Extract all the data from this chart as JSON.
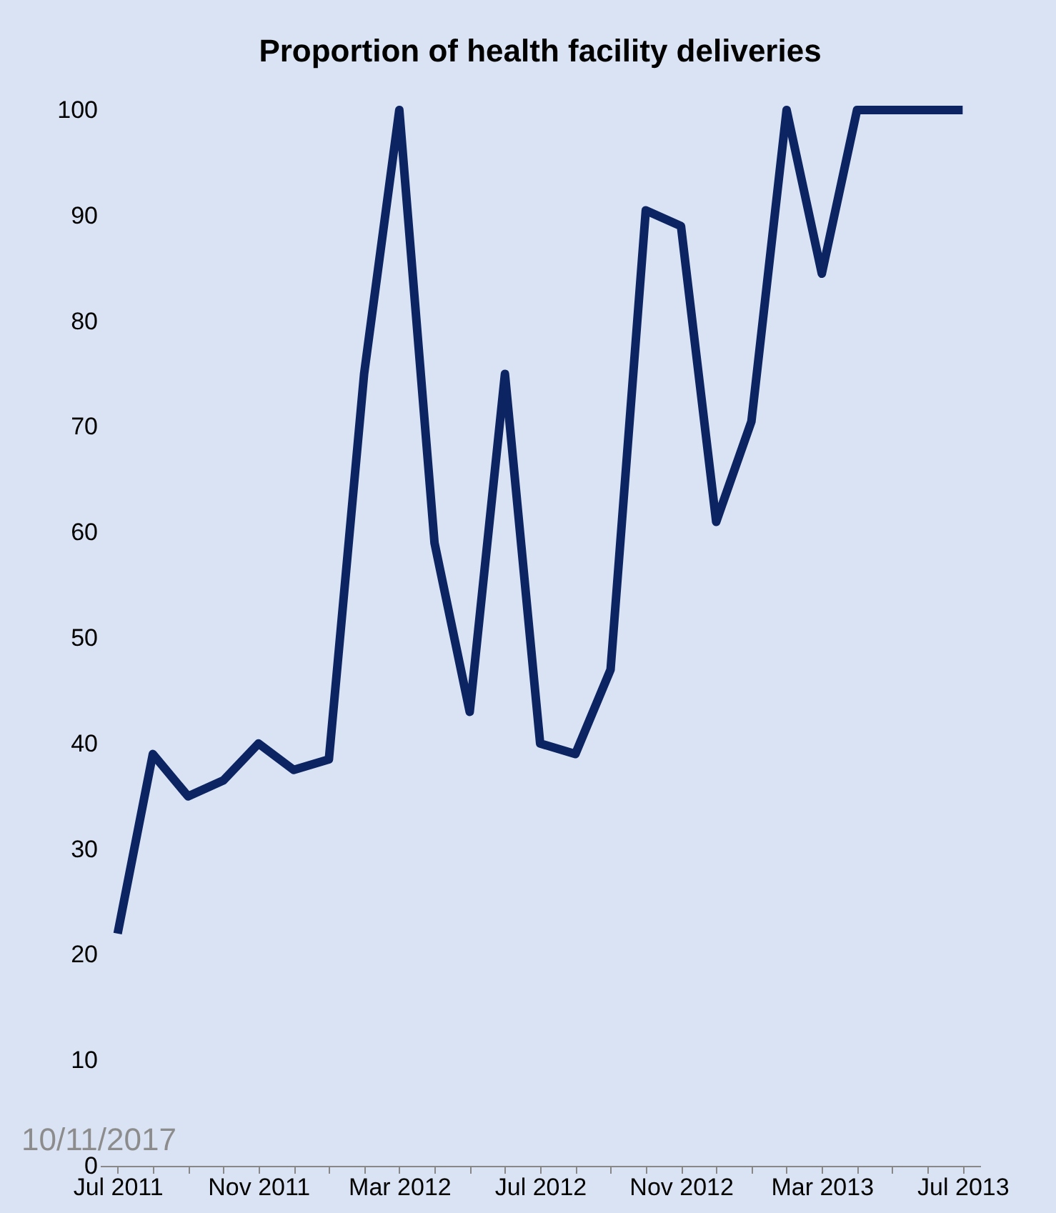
{
  "chart_data": {
    "type": "line",
    "title": "Proportion of health facility deliveries",
    "categories": [
      "Jul 2011",
      null,
      null,
      null,
      "Nov 2011",
      null,
      null,
      null,
      "Mar 2012",
      null,
      null,
      null,
      "Jul 2012",
      null,
      null,
      null,
      "Nov 2012",
      null,
      null,
      null,
      "Mar 2013",
      null,
      null,
      null,
      "Jul 2013"
    ],
    "series": [
      {
        "color": "#0c2461",
        "values": [
          22,
          39,
          35,
          36.5,
          40,
          37.5,
          38.5,
          75,
          100,
          59,
          43,
          75,
          40,
          39,
          47,
          90.5,
          89,
          61,
          70.5,
          100,
          84.5,
          100,
          100,
          100,
          100
        ]
      }
    ],
    "ylim": [
      0,
      100
    ],
    "yticks": [
      0,
      10,
      20,
      30,
      40,
      50,
      60,
      70,
      80,
      90,
      100
    ],
    "grid": false,
    "legend": false,
    "marker": "none",
    "line_style": "solid",
    "annotations": [
      "10/11/2017"
    ]
  }
}
